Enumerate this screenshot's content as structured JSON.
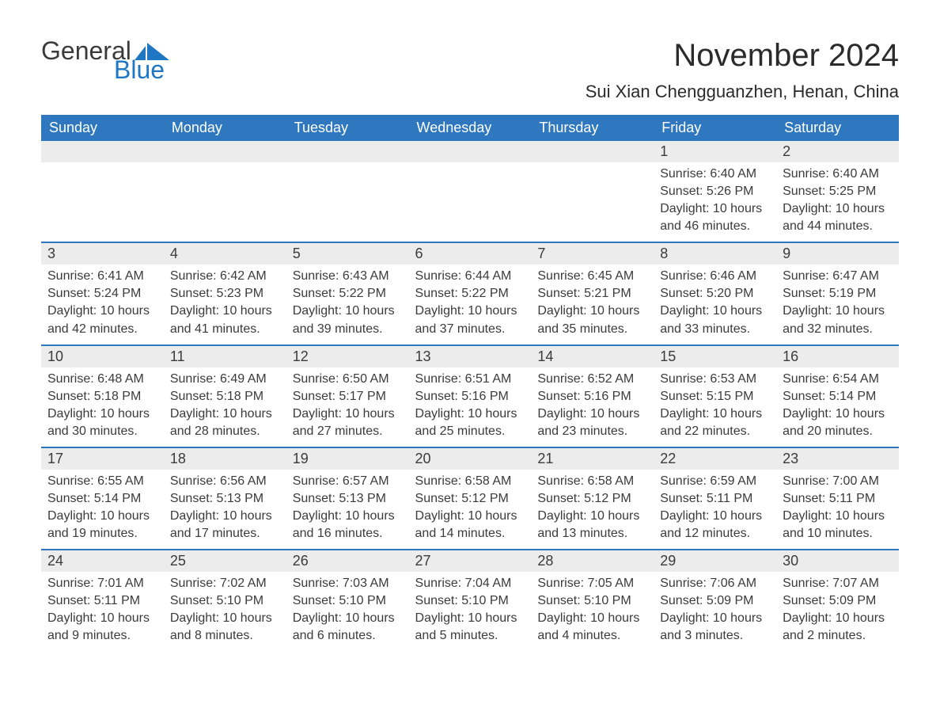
{
  "brand": {
    "word1": "General",
    "word2": "Blue",
    "accent_color": "#1f77c4"
  },
  "title": "November 2024",
  "location": "Sui Xian Chengguanzhen, Henan, China",
  "colors": {
    "header_bg": "#2f78bf",
    "header_text": "#ffffff",
    "daynum_bg": "#ececec",
    "week_separator": "#2f78bf",
    "body_text": "#3b3b3b",
    "page_bg": "#ffffff"
  },
  "typography": {
    "title_fontsize": 40,
    "location_fontsize": 22,
    "header_fontsize": 18,
    "daynum_fontsize": 18,
    "body_fontsize": 16
  },
  "layout": {
    "columns": 7,
    "rows": 5,
    "leading_blanks": 5
  },
  "headers": [
    "Sunday",
    "Monday",
    "Tuesday",
    "Wednesday",
    "Thursday",
    "Friday",
    "Saturday"
  ],
  "labels": {
    "sunrise": "Sunrise",
    "sunset": "Sunset",
    "daylight": "Daylight"
  },
  "days": [
    {
      "n": 1,
      "sunrise": "6:40 AM",
      "sunset": "5:26 PM",
      "daylight": "10 hours and 46 minutes."
    },
    {
      "n": 2,
      "sunrise": "6:40 AM",
      "sunset": "5:25 PM",
      "daylight": "10 hours and 44 minutes."
    },
    {
      "n": 3,
      "sunrise": "6:41 AM",
      "sunset": "5:24 PM",
      "daylight": "10 hours and 42 minutes."
    },
    {
      "n": 4,
      "sunrise": "6:42 AM",
      "sunset": "5:23 PM",
      "daylight": "10 hours and 41 minutes."
    },
    {
      "n": 5,
      "sunrise": "6:43 AM",
      "sunset": "5:22 PM",
      "daylight": "10 hours and 39 minutes."
    },
    {
      "n": 6,
      "sunrise": "6:44 AM",
      "sunset": "5:22 PM",
      "daylight": "10 hours and 37 minutes."
    },
    {
      "n": 7,
      "sunrise": "6:45 AM",
      "sunset": "5:21 PM",
      "daylight": "10 hours and 35 minutes."
    },
    {
      "n": 8,
      "sunrise": "6:46 AM",
      "sunset": "5:20 PM",
      "daylight": "10 hours and 33 minutes."
    },
    {
      "n": 9,
      "sunrise": "6:47 AM",
      "sunset": "5:19 PM",
      "daylight": "10 hours and 32 minutes."
    },
    {
      "n": 10,
      "sunrise": "6:48 AM",
      "sunset": "5:18 PM",
      "daylight": "10 hours and 30 minutes."
    },
    {
      "n": 11,
      "sunrise": "6:49 AM",
      "sunset": "5:18 PM",
      "daylight": "10 hours and 28 minutes."
    },
    {
      "n": 12,
      "sunrise": "6:50 AM",
      "sunset": "5:17 PM",
      "daylight": "10 hours and 27 minutes."
    },
    {
      "n": 13,
      "sunrise": "6:51 AM",
      "sunset": "5:16 PM",
      "daylight": "10 hours and 25 minutes."
    },
    {
      "n": 14,
      "sunrise": "6:52 AM",
      "sunset": "5:16 PM",
      "daylight": "10 hours and 23 minutes."
    },
    {
      "n": 15,
      "sunrise": "6:53 AM",
      "sunset": "5:15 PM",
      "daylight": "10 hours and 22 minutes."
    },
    {
      "n": 16,
      "sunrise": "6:54 AM",
      "sunset": "5:14 PM",
      "daylight": "10 hours and 20 minutes."
    },
    {
      "n": 17,
      "sunrise": "6:55 AM",
      "sunset": "5:14 PM",
      "daylight": "10 hours and 19 minutes."
    },
    {
      "n": 18,
      "sunrise": "6:56 AM",
      "sunset": "5:13 PM",
      "daylight": "10 hours and 17 minutes."
    },
    {
      "n": 19,
      "sunrise": "6:57 AM",
      "sunset": "5:13 PM",
      "daylight": "10 hours and 16 minutes."
    },
    {
      "n": 20,
      "sunrise": "6:58 AM",
      "sunset": "5:12 PM",
      "daylight": "10 hours and 14 minutes."
    },
    {
      "n": 21,
      "sunrise": "6:58 AM",
      "sunset": "5:12 PM",
      "daylight": "10 hours and 13 minutes."
    },
    {
      "n": 22,
      "sunrise": "6:59 AM",
      "sunset": "5:11 PM",
      "daylight": "10 hours and 12 minutes."
    },
    {
      "n": 23,
      "sunrise": "7:00 AM",
      "sunset": "5:11 PM",
      "daylight": "10 hours and 10 minutes."
    },
    {
      "n": 24,
      "sunrise": "7:01 AM",
      "sunset": "5:11 PM",
      "daylight": "10 hours and 9 minutes."
    },
    {
      "n": 25,
      "sunrise": "7:02 AM",
      "sunset": "5:10 PM",
      "daylight": "10 hours and 8 minutes."
    },
    {
      "n": 26,
      "sunrise": "7:03 AM",
      "sunset": "5:10 PM",
      "daylight": "10 hours and 6 minutes."
    },
    {
      "n": 27,
      "sunrise": "7:04 AM",
      "sunset": "5:10 PM",
      "daylight": "10 hours and 5 minutes."
    },
    {
      "n": 28,
      "sunrise": "7:05 AM",
      "sunset": "5:10 PM",
      "daylight": "10 hours and 4 minutes."
    },
    {
      "n": 29,
      "sunrise": "7:06 AM",
      "sunset": "5:09 PM",
      "daylight": "10 hours and 3 minutes."
    },
    {
      "n": 30,
      "sunrise": "7:07 AM",
      "sunset": "5:09 PM",
      "daylight": "10 hours and 2 minutes."
    }
  ]
}
